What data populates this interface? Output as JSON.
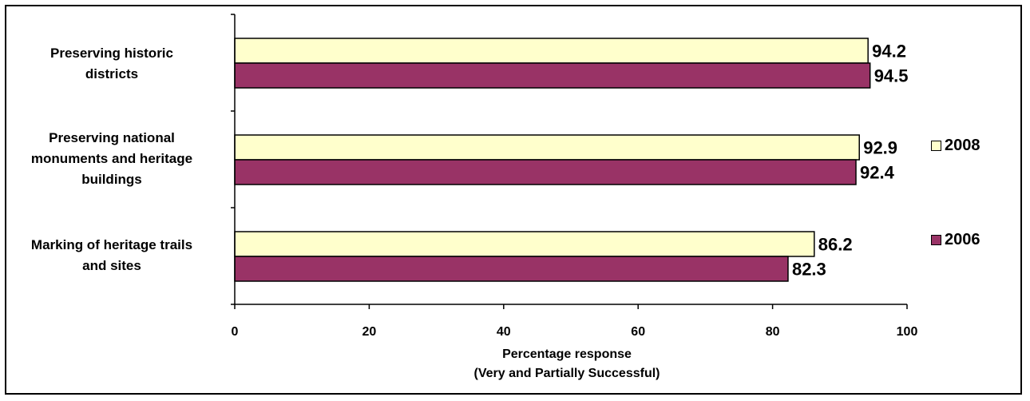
{
  "chart_data": {
    "type": "bar",
    "orientation": "horizontal",
    "categories": [
      "Preserving historic districts",
      "Preserving national monuments and heritage buildings",
      "Marking of heritage trails and sites"
    ],
    "category_label_lines": [
      [
        "Preserving historic",
        "districts"
      ],
      [
        "Preserving national",
        "monuments and heritage",
        "buildings"
      ],
      [
        "Marking of heritage trails",
        "and sites"
      ]
    ],
    "series": [
      {
        "name": "2008",
        "values": [
          94.2,
          92.9,
          86.2
        ],
        "color": "#FFFFCC"
      },
      {
        "name": "2006",
        "values": [
          94.5,
          92.4,
          82.3
        ],
        "color": "#993366"
      }
    ],
    "xlabel_lines": [
      "Percentage response",
      "(Very and Partially Successful)"
    ],
    "xlim": [
      0,
      100
    ],
    "xticks": [
      0,
      20,
      40,
      60,
      80,
      100
    ],
    "grid": false,
    "legend_position": "right",
    "data_labels": true
  }
}
